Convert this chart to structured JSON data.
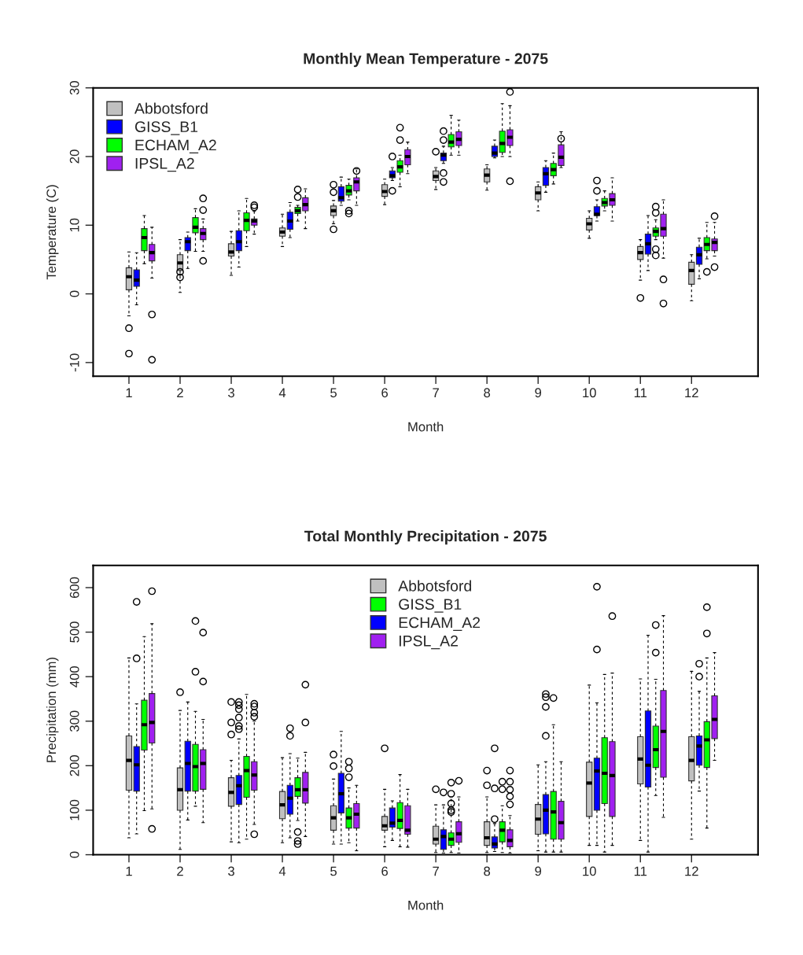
{
  "chart_data": [
    {
      "type": "box",
      "title": "Monthly Mean Temperature - 2075",
      "xlabel": "Month",
      "ylabel": "Temperature (C)",
      "xlim": [
        0.3,
        13.3
      ],
      "xticks": [
        1,
        2,
        3,
        4,
        5,
        6,
        7,
        8,
        9,
        10,
        11,
        12
      ],
      "ylim": [
        -12,
        30
      ],
      "yticks": [
        -10,
        0,
        10,
        20,
        30
      ],
      "legend": "top left",
      "series": [
        {
          "name": "Abbotsford",
          "color": "#c0c0c0",
          "x": [
            1,
            2,
            3,
            4,
            5,
            6,
            7,
            8,
            9,
            10,
            11,
            12
          ],
          "boxes": [
            {
              "low": -3.2,
              "q1": 0.6,
              "median": 2.5,
              "q3": 3.8,
              "high": 6.1,
              "outliers": [
                -5.0,
                -8.7
              ]
            },
            {
              "low": 0.2,
              "q1": 3.4,
              "median": 4.5,
              "q3": 5.7,
              "high": 7.9,
              "outliers": [
                3.2,
                2.4
              ]
            },
            {
              "low": 2.7,
              "q1": 5.5,
              "median": 6.1,
              "q3": 7.3,
              "high": 9.1
            },
            {
              "low": 6.9,
              "q1": 8.4,
              "median": 9.0,
              "q3": 9.6,
              "high": 11.6
            },
            {
              "low": 10.2,
              "q1": 11.4,
              "median": 12.1,
              "q3": 12.8,
              "high": 13.6,
              "outliers": [
                9.4,
                15.9,
                14.8
              ]
            },
            {
              "low": 13.0,
              "q1": 14.2,
              "median": 14.9,
              "q3": 15.9,
              "high": 16.7
            },
            {
              "low": 15.2,
              "q1": 16.5,
              "median": 17.1,
              "q3": 17.9,
              "high": 18.4,
              "outliers": [
                20.7
              ]
            },
            {
              "low": 15.1,
              "q1": 16.3,
              "median": 17.3,
              "q3": 18.2,
              "high": 18.8
            },
            {
              "low": 12.1,
              "q1": 13.7,
              "median": 14.7,
              "q3": 15.6,
              "high": 16.3
            },
            {
              "low": 8.1,
              "q1": 9.3,
              "median": 10.2,
              "q3": 11.0,
              "high": 12.1
            },
            {
              "low": 2.0,
              "q1": 5.0,
              "median": 6.0,
              "q3": 6.9,
              "high": 7.9,
              "outliers": [
                -0.6
              ]
            },
            {
              "low": -1.0,
              "q1": 1.4,
              "median": 3.4,
              "q3": 4.6,
              "high": 5.7
            }
          ]
        },
        {
          "name": "GISS_B1",
          "color": "#0000ff",
          "x": [
            1.15,
            2.15,
            3.15,
            4.15,
            5.15,
            6.15,
            7.15,
            8.15,
            9.15,
            10.15,
            11.15,
            12.15
          ],
          "boxes": [
            {
              "low": -1.6,
              "q1": 1.1,
              "median": 2.0,
              "q3": 3.5,
              "high": 6.0
            },
            {
              "low": 3.7,
              "q1": 6.3,
              "median": 7.6,
              "q3": 8.2,
              "high": 9.0
            },
            {
              "low": 3.9,
              "q1": 6.3,
              "median": 7.6,
              "q3": 9.2,
              "high": 12.1
            },
            {
              "low": 8.2,
              "q1": 9.4,
              "median": 10.6,
              "q3": 11.9,
              "high": 13.3
            },
            {
              "low": 12.9,
              "q1": 13.5,
              "median": 14.0,
              "q3": 15.6,
              "high": 17.0
            },
            {
              "low": 16.5,
              "q1": 16.9,
              "median": 17.2,
              "q3": 17.9,
              "high": 18.4,
              "outliers": [
                20.0,
                15.0
              ]
            },
            {
              "low": 19.0,
              "q1": 19.4,
              "median": 20.2,
              "q3": 20.5,
              "high": 21.5,
              "outliers": [
                23.7,
                22.4,
                17.6,
                16.3
              ]
            },
            {
              "low": 19.8,
              "q1": 20.0,
              "median": 20.5,
              "q3": 21.5,
              "high": 22.4
            },
            {
              "low": 14.8,
              "q1": 15.8,
              "median": 17.5,
              "q3": 18.4,
              "high": 19.4
            },
            {
              "low": 10.6,
              "q1": 11.4,
              "median": 11.6,
              "q3": 12.7,
              "high": 13.7,
              "outliers": [
                16.5,
                15.0
              ]
            },
            {
              "low": 3.4,
              "q1": 5.8,
              "median": 7.3,
              "q3": 8.7,
              "high": 11.4
            },
            {
              "low": 2.2,
              "q1": 4.3,
              "median": 5.7,
              "q3": 6.8,
              "high": 8.1
            }
          ]
        },
        {
          "name": "ECHAM_A2",
          "color": "#00ff00",
          "x": [
            1.3,
            2.3,
            3.3,
            4.3,
            5.3,
            6.3,
            7.3,
            8.3,
            9.3,
            10.3,
            11.3,
            12.3
          ],
          "boxes": [
            {
              "low": 4.4,
              "q1": 6.3,
              "median": 8.2,
              "q3": 9.5,
              "high": 11.4
            },
            {
              "low": 6.2,
              "q1": 8.9,
              "median": 9.7,
              "q3": 11.1,
              "high": 12.4
            },
            {
              "low": 6.9,
              "q1": 9.2,
              "median": 10.7,
              "q3": 11.8,
              "high": 13.9
            },
            {
              "low": 10.6,
              "q1": 11.7,
              "median": 12.1,
              "q3": 12.6,
              "high": 12.9,
              "outliers": [
                15.2,
                14.1
              ]
            },
            {
              "low": 13.7,
              "q1": 14.4,
              "median": 15.0,
              "q3": 15.8,
              "high": 16.7,
              "outliers": [
                12.1,
                11.7
              ]
            },
            {
              "low": 15.6,
              "q1": 17.7,
              "median": 18.5,
              "q3": 19.4,
              "high": 20.2,
              "outliers": [
                24.2,
                22.4
              ]
            },
            {
              "low": 20.2,
              "q1": 21.4,
              "median": 22.1,
              "q3": 23.2,
              "high": 26.0
            },
            {
              "low": 20.0,
              "q1": 20.6,
              "median": 21.9,
              "q3": 23.7,
              "high": 27.7
            },
            {
              "low": 16.0,
              "q1": 17.2,
              "median": 18.1,
              "q3": 19.0,
              "high": 20.5
            },
            {
              "low": 12.1,
              "q1": 12.8,
              "median": 13.3,
              "q3": 13.9,
              "high": 15.0
            },
            {
              "low": 7.9,
              "q1": 8.4,
              "median": 9.1,
              "q3": 9.6,
              "high": 10.8,
              "outliers": [
                12.7,
                11.8,
                6.5,
                5.6
              ]
            },
            {
              "low": 5.1,
              "q1": 6.3,
              "median": 7.2,
              "q3": 8.2,
              "high": 10.4,
              "outliers": [
                3.2
              ]
            }
          ]
        },
        {
          "name": "IPSL_A2",
          "color": "#a020f0",
          "x": [
            1.45,
            2.45,
            3.45,
            4.45,
            5.45,
            6.45,
            7.45,
            8.45,
            9.45,
            10.45,
            11.45,
            12.45
          ],
          "boxes": [
            {
              "low": 2.3,
              "q1": 4.8,
              "median": 6.0,
              "q3": 7.2,
              "high": 9.7,
              "outliers": [
                -3.0,
                -9.6
              ]
            },
            {
              "low": 6.2,
              "q1": 7.9,
              "median": 8.8,
              "q3": 9.5,
              "high": 10.9,
              "outliers": [
                13.9,
                12.2,
                4.8
              ]
            },
            {
              "low": 8.7,
              "q1": 10.0,
              "median": 10.6,
              "q3": 10.9,
              "high": 12.0,
              "outliers": [
                12.9,
                12.6
              ]
            },
            {
              "low": 9.5,
              "q1": 12.1,
              "median": 13.0,
              "q3": 14.0,
              "high": 15.3
            },
            {
              "low": 12.9,
              "q1": 15.0,
              "median": 16.3,
              "q3": 16.9,
              "high": 18.2,
              "outliers": [
                17.9
              ]
            },
            {
              "low": 17.5,
              "q1": 18.8,
              "median": 20.0,
              "q3": 21.0,
              "high": 22.1
            },
            {
              "low": 20.2,
              "q1": 21.6,
              "median": 22.5,
              "q3": 23.6,
              "high": 25.3
            },
            {
              "low": 20.0,
              "q1": 21.6,
              "median": 22.8,
              "q3": 23.9,
              "high": 27.4,
              "outliers": [
                29.4,
                16.4
              ]
            },
            {
              "low": 18.4,
              "q1": 18.7,
              "median": 19.9,
              "q3": 21.7,
              "high": 23.6,
              "outliers": [
                22.6
              ]
            },
            {
              "low": 10.6,
              "q1": 12.9,
              "median": 13.7,
              "q3": 14.6,
              "high": 16.9
            },
            {
              "low": 5.2,
              "q1": 8.4,
              "median": 9.5,
              "q3": 11.6,
              "high": 13.7,
              "outliers": [
                2.1,
                -1.4
              ]
            },
            {
              "low": 5.5,
              "q1": 6.3,
              "median": 7.5,
              "q3": 8.0,
              "high": 10.4,
              "outliers": [
                11.3,
                3.9
              ]
            }
          ]
        }
      ]
    },
    {
      "type": "box",
      "title": "Total Monthly Precipitation - 2075",
      "xlabel": "Month",
      "ylabel": "Precipitation (mm)",
      "xlim": [
        0.3,
        13.3
      ],
      "xticks": [
        1,
        2,
        3,
        4,
        5,
        6,
        7,
        8,
        9,
        10,
        11,
        12
      ],
      "ylim": [
        0,
        650
      ],
      "yticks": [
        0,
        100,
        200,
        300,
        400,
        500,
        600
      ],
      "legend": "top",
      "series": [
        {
          "name": "Abbotsford",
          "color": "#c0c0c0",
          "x": [
            1,
            2,
            3,
            4,
            5,
            6,
            7,
            8,
            9,
            10,
            11,
            12
          ],
          "boxes": [
            {
              "low": 38,
              "q1": 145,
              "median": 212,
              "q3": 267,
              "high": 442
            },
            {
              "low": 12,
              "q1": 100,
              "median": 146,
              "q3": 195,
              "high": 324,
              "outliers": [
                365
              ]
            },
            {
              "low": 29,
              "q1": 109,
              "median": 140,
              "q3": 173,
              "high": 212,
              "outliers": [
                343,
                297,
                270
              ]
            },
            {
              "low": 27,
              "q1": 81,
              "median": 112,
              "q3": 142,
              "high": 218
            },
            {
              "low": 24,
              "q1": 55,
              "median": 83,
              "q3": 110,
              "high": 170,
              "outliers": [
                225,
                199
              ]
            },
            {
              "low": 18,
              "q1": 55,
              "median": 65,
              "q3": 86,
              "high": 147,
              "outliers": [
                239
              ]
            },
            {
              "low": 5,
              "q1": 24,
              "median": 35,
              "q3": 64,
              "high": 112,
              "outliers": [
                147
              ]
            },
            {
              "low": 5,
              "q1": 21,
              "median": 38,
              "q3": 74,
              "high": 130,
              "outliers": [
                189,
                156
              ]
            },
            {
              "low": 9,
              "q1": 46,
              "median": 80,
              "q3": 113,
              "high": 202
            },
            {
              "low": 21,
              "q1": 86,
              "median": 161,
              "q3": 208,
              "high": 381
            },
            {
              "low": 32,
              "q1": 159,
              "median": 215,
              "q3": 265,
              "high": 395
            },
            {
              "low": 35,
              "q1": 166,
              "median": 212,
              "q3": 265,
              "high": 412
            }
          ]
        },
        {
          "name": "GISS_B1",
          "color": "#00ff00",
          "x": [
            1.3,
            2.3,
            3.3,
            4.3,
            5.3,
            6.3,
            7.3,
            8.3,
            9.3,
            10.3,
            11.3,
            12.3
          ],
          "boxes": [
            {
              "low": 99,
              "q1": 235,
              "median": 292,
              "q3": 347,
              "high": 490
            },
            {
              "low": 109,
              "q1": 143,
              "median": 198,
              "q3": 248,
              "high": 322,
              "outliers": [
                525,
                411
              ]
            },
            {
              "low": 35,
              "q1": 129,
              "median": 189,
              "q3": 221,
              "high": 360
            },
            {
              "low": 77,
              "q1": 131,
              "median": 146,
              "q3": 173,
              "high": 217,
              "outliers": [
                51,
                31,
                24
              ]
            },
            {
              "low": 27,
              "q1": 60,
              "median": 83,
              "q3": 105,
              "high": 150,
              "outliers": [
                209,
                194,
                174
              ]
            },
            {
              "low": 18,
              "q1": 59,
              "median": 77,
              "q3": 117,
              "high": 180
            },
            {
              "low": 5,
              "q1": 21,
              "median": 35,
              "q3": 49,
              "high": 130,
              "outliers": [
                162,
                137,
                115,
                100,
                96
              ]
            },
            {
              "low": 5,
              "q1": 29,
              "median": 55,
              "q3": 74,
              "high": 110,
              "outliers": [
                164,
                147
              ]
            },
            {
              "low": 6,
              "q1": 35,
              "median": 96,
              "q3": 142,
              "high": 292,
              "outliers": [
                352
              ]
            },
            {
              "low": 6,
              "q1": 115,
              "median": 183,
              "q3": 263,
              "high": 405
            },
            {
              "low": 133,
              "q1": 196,
              "median": 236,
              "q3": 289,
              "high": 394,
              "outliers": [
                516,
                454
              ]
            },
            {
              "low": 60,
              "q1": 196,
              "median": 258,
              "q3": 299,
              "high": 442,
              "outliers": [
                556,
                497
              ]
            }
          ]
        },
        {
          "name": "ECHAM_A2",
          "color": "#0000ff",
          "x": [
            1.15,
            2.15,
            3.15,
            4.15,
            5.15,
            6.15,
            7.15,
            8.15,
            9.15,
            10.15,
            11.15,
            12.15
          ],
          "boxes": [
            {
              "low": 47,
              "q1": 143,
              "median": 202,
              "q3": 243,
              "high": 339,
              "outliers": [
                568,
                441
              ]
            },
            {
              "low": 78,
              "q1": 143,
              "median": 205,
              "q3": 255,
              "high": 343
            },
            {
              "low": 27,
              "q1": 113,
              "median": 155,
              "q3": 178,
              "high": 260,
              "outliers": [
                343,
                336,
                327,
                308,
                289,
                282
              ]
            },
            {
              "low": 38,
              "q1": 91,
              "median": 127,
              "q3": 156,
              "high": 227,
              "outliers": [
                284,
                267
              ]
            },
            {
              "low": 24,
              "q1": 94,
              "median": 137,
              "q3": 183,
              "high": 277
            },
            {
              "low": 32,
              "q1": 62,
              "median": 71,
              "q3": 105,
              "high": 121
            },
            {
              "low": 4,
              "q1": 12,
              "median": 41,
              "q3": 56,
              "high": 112,
              "outliers": [
                140
              ]
            },
            {
              "low": 7,
              "q1": 15,
              "median": 24,
              "q3": 40,
              "high": 70,
              "outliers": [
                239,
                149,
                80
              ]
            },
            {
              "low": 6,
              "q1": 47,
              "median": 100,
              "q3": 135,
              "high": 209,
              "outliers": [
                361,
                354,
                332,
                267
              ]
            },
            {
              "low": 21,
              "q1": 100,
              "median": 188,
              "q3": 217,
              "high": 341,
              "outliers": [
                602,
                461
              ]
            },
            {
              "low": 6,
              "q1": 152,
              "median": 201,
              "q3": 323,
              "high": 493
            },
            {
              "low": 143,
              "q1": 201,
              "median": 244,
              "q3": 267,
              "high": 367,
              "outliers": [
                429,
                400
              ]
            }
          ]
        },
        {
          "name": "IPSL_A2",
          "color": "#a020f0",
          "x": [
            1.45,
            2.45,
            3.45,
            4.45,
            5.45,
            6.45,
            7.45,
            8.45,
            9.45,
            10.45,
            11.45,
            12.45
          ],
          "boxes": [
            {
              "low": 103,
              "q1": 251,
              "median": 297,
              "q3": 362,
              "high": 519,
              "outliers": [
                592,
                58
              ]
            },
            {
              "low": 72,
              "q1": 147,
              "median": 205,
              "q3": 236,
              "high": 304,
              "outliers": [
                499,
                389
              ]
            },
            {
              "low": 68,
              "q1": 145,
              "median": 179,
              "q3": 209,
              "high": 300,
              "outliers": [
                339,
                333,
                319,
                310,
                46
              ]
            },
            {
              "low": 41,
              "q1": 116,
              "median": 146,
              "q3": 185,
              "high": 230,
              "outliers": [
                382,
                297
              ]
            },
            {
              "low": 9,
              "q1": 60,
              "median": 91,
              "q3": 115,
              "high": 156
            },
            {
              "low": 17,
              "q1": 46,
              "median": 55,
              "q3": 110,
              "high": 147
            },
            {
              "low": 4,
              "q1": 28,
              "median": 47,
              "q3": 74,
              "high": 130,
              "outliers": [
                166
              ]
            },
            {
              "low": 4,
              "q1": 18,
              "median": 32,
              "q3": 56,
              "high": 88,
              "outliers": [
                189,
                164,
                146,
                131,
                113
              ]
            },
            {
              "low": 6,
              "q1": 35,
              "median": 72,
              "q3": 120,
              "high": 209
            },
            {
              "low": 21,
              "q1": 86,
              "median": 178,
              "q3": 254,
              "high": 408,
              "outliers": [
                536
              ]
            },
            {
              "low": 84,
              "q1": 174,
              "median": 277,
              "q3": 369,
              "high": 537
            },
            {
              "low": 212,
              "q1": 261,
              "median": 304,
              "q3": 357,
              "high": 454
            }
          ]
        }
      ]
    }
  ]
}
